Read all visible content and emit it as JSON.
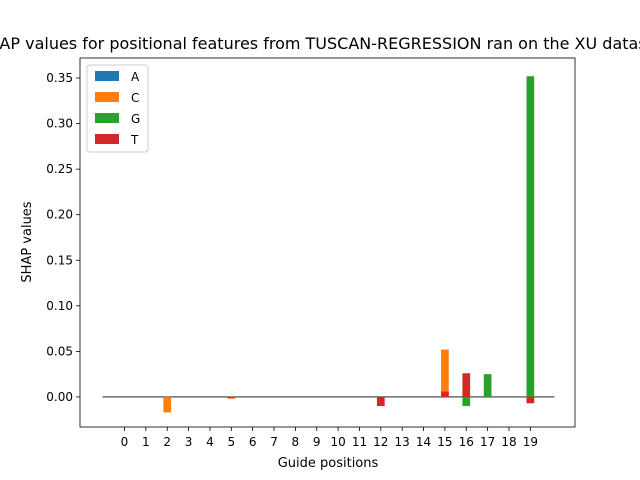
{
  "chart_data": {
    "type": "bar",
    "title": "SHAP values for positional features from TUSCAN-REGRESSION ran on the XU dataset",
    "xlabel": "Guide positions",
    "ylabel": "SHAP values",
    "categories": [
      "0",
      "1",
      "2",
      "3",
      "4",
      "5",
      "6",
      "7",
      "8",
      "9",
      "10",
      "11",
      "12",
      "13",
      "14",
      "15",
      "16",
      "17",
      "18",
      "19"
    ],
    "yticks": [
      "0.00",
      "0.05",
      "0.10",
      "0.15",
      "0.20",
      "0.25",
      "0.30",
      "0.35"
    ],
    "ylim": [
      -0.033,
      0.372
    ],
    "grid": false,
    "legend_position": "top-left",
    "series": [
      {
        "name": "A",
        "color": "#1f77b4",
        "values": [
          0,
          0,
          0,
          0,
          0,
          0,
          0,
          0,
          0,
          0,
          0,
          0,
          0,
          0,
          0,
          0,
          0,
          0,
          0,
          0
        ]
      },
      {
        "name": "C",
        "color": "#ff7f0e",
        "values": [
          0,
          0,
          -0.017,
          0,
          0,
          -0.002,
          0,
          0,
          0,
          0,
          0,
          0,
          0,
          0,
          0,
          0.052,
          0,
          0,
          0,
          0
        ]
      },
      {
        "name": "G",
        "color": "#2ca02c",
        "values": [
          0,
          0,
          0,
          0,
          0,
          0,
          0,
          0,
          0,
          0,
          0,
          0,
          0,
          0,
          0,
          0,
          -0.01,
          0.025,
          0,
          0.352
        ]
      },
      {
        "name": "T",
        "color": "#d62728",
        "values": [
          0,
          0,
          0,
          0,
          0,
          -0.001,
          0,
          0,
          0,
          0,
          0,
          0,
          -0.01,
          0,
          0,
          0.006,
          0.026,
          0,
          0,
          -0.007
        ]
      }
    ]
  }
}
